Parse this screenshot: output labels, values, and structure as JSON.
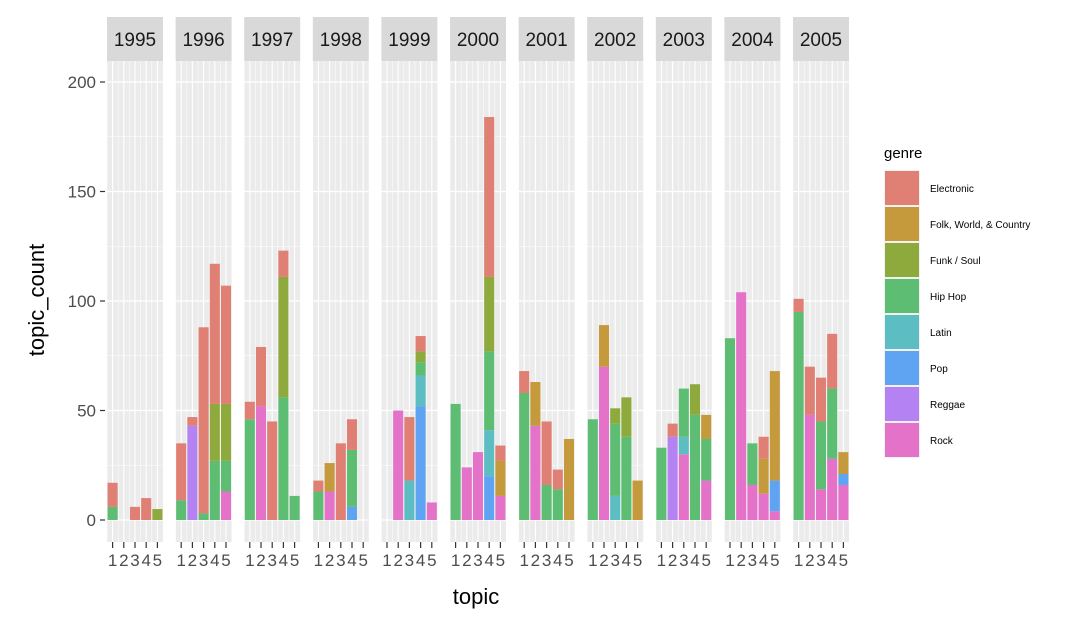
{
  "chart_data": {
    "type": "bar",
    "stacked": true,
    "facet_by": "year",
    "xlabel": "topic",
    "ylabel": "topic_count",
    "ylim": [
      0,
      210
    ],
    "yticks": [
      0,
      50,
      100,
      150,
      200
    ],
    "x_categories": [
      "1",
      "2",
      "3",
      "4",
      "5"
    ],
    "legend": {
      "title": "genre",
      "placement": "right"
    },
    "genres": [
      {
        "name": "Electronic",
        "color": "#E07F73"
      },
      {
        "name": "Folk, World, & Country",
        "color": "#C49A3C"
      },
      {
        "name": "Funk / Soul",
        "color": "#8FAA3C"
      },
      {
        "name": "Hip Hop",
        "color": "#5DBD72"
      },
      {
        "name": "Latin",
        "color": "#5CBDC3"
      },
      {
        "name": "Pop",
        "color": "#5EA4F2"
      },
      {
        "name": "Reggae",
        "color": "#B482F2"
      },
      {
        "name": "Rock",
        "color": "#E572C9"
      }
    ],
    "facets": [
      {
        "year": "1995",
        "bars": [
          {
            "topic": "1",
            "stack": {
              "Hip Hop": 6,
              "Electronic": 11
            }
          },
          {
            "topic": "2",
            "stack": {}
          },
          {
            "topic": "3",
            "stack": {
              "Electronic": 6
            }
          },
          {
            "topic": "4",
            "stack": {
              "Electronic": 10
            }
          },
          {
            "topic": "5",
            "stack": {
              "Funk / Soul": 5
            }
          }
        ]
      },
      {
        "year": "1996",
        "bars": [
          {
            "topic": "1",
            "stack": {
              "Hip Hop": 9,
              "Electronic": 26
            }
          },
          {
            "topic": "2",
            "stack": {
              "Reggae": 43,
              "Electronic": 4
            }
          },
          {
            "topic": "3",
            "stack": {
              "Hip Hop": 3,
              "Electronic": 85
            }
          },
          {
            "topic": "4",
            "stack": {
              "Hip Hop": 27,
              "Funk / Soul": 26,
              "Electronic": 64
            }
          },
          {
            "topic": "5",
            "stack": {
              "Rock": 13,
              "Hip Hop": 14,
              "Funk / Soul": 26,
              "Electronic": 54
            }
          }
        ]
      },
      {
        "year": "1997",
        "bars": [
          {
            "topic": "1",
            "stack": {
              "Hip Hop": 46,
              "Electronic": 8
            }
          },
          {
            "topic": "2",
            "stack": {
              "Rock": 52,
              "Electronic": 27
            }
          },
          {
            "topic": "3",
            "stack": {
              "Electronic": 45
            }
          },
          {
            "topic": "4",
            "stack": {
              "Hip Hop": 56,
              "Funk / Soul": 55,
              "Electronic": 12
            }
          },
          {
            "topic": "5",
            "stack": {
              "Hip Hop": 11
            }
          }
        ]
      },
      {
        "year": "1998",
        "bars": [
          {
            "topic": "1",
            "stack": {
              "Hip Hop": 13,
              "Electronic": 5
            }
          },
          {
            "topic": "2",
            "stack": {
              "Rock": 13,
              "Folk, World, & Country": 13
            }
          },
          {
            "topic": "3",
            "stack": {
              "Electronic": 35
            }
          },
          {
            "topic": "4",
            "stack": {
              "Pop": 6,
              "Hip Hop": 26,
              "Electronic": 14
            }
          },
          {
            "topic": "5",
            "stack": {}
          }
        ]
      },
      {
        "year": "1999",
        "bars": [
          {
            "topic": "1",
            "stack": {}
          },
          {
            "topic": "2",
            "stack": {
              "Rock": 50
            }
          },
          {
            "topic": "3",
            "stack": {
              "Latin": 18,
              "Electronic": 29
            }
          },
          {
            "topic": "4",
            "stack": {
              "Pop": 52,
              "Latin": 14,
              "Hip Hop": 6,
              "Funk / Soul": 5,
              "Electronic": 7
            }
          },
          {
            "topic": "5",
            "stack": {
              "Rock": 8
            }
          }
        ]
      },
      {
        "year": "2000",
        "bars": [
          {
            "topic": "1",
            "stack": {
              "Hip Hop": 53
            }
          },
          {
            "topic": "2",
            "stack": {
              "Rock": 24
            }
          },
          {
            "topic": "3",
            "stack": {
              "Rock": 31
            }
          },
          {
            "topic": "4",
            "stack": {
              "Pop": 20,
              "Latin": 21,
              "Hip Hop": 36,
              "Funk / Soul": 34,
              "Electronic": 73
            }
          },
          {
            "topic": "5",
            "stack": {
              "Rock": 11,
              "Folk, World, & Country": 16,
              "Electronic": 7
            }
          }
        ]
      },
      {
        "year": "2001",
        "bars": [
          {
            "topic": "1",
            "stack": {
              "Hip Hop": 58,
              "Electronic": 10
            }
          },
          {
            "topic": "2",
            "stack": {
              "Rock": 43,
              "Folk, World, & Country": 20
            }
          },
          {
            "topic": "3",
            "stack": {
              "Hip Hop": 16,
              "Electronic": 29
            }
          },
          {
            "topic": "4",
            "stack": {
              "Hip Hop": 14,
              "Electronic": 9
            }
          },
          {
            "topic": "5",
            "stack": {
              "Folk, World, & Country": 37
            }
          }
        ]
      },
      {
        "year": "2002",
        "bars": [
          {
            "topic": "1",
            "stack": {
              "Hip Hop": 46
            }
          },
          {
            "topic": "2",
            "stack": {
              "Rock": 70,
              "Folk, World, & Country": 19
            }
          },
          {
            "topic": "3",
            "stack": {
              "Latin": 11,
              "Hip Hop": 33,
              "Funk / Soul": 7
            }
          },
          {
            "topic": "4",
            "stack": {
              "Hip Hop": 38,
              "Funk / Soul": 18
            }
          },
          {
            "topic": "5",
            "stack": {
              "Folk, World, & Country": 18
            }
          }
        ]
      },
      {
        "year": "2003",
        "bars": [
          {
            "topic": "1",
            "stack": {
              "Hip Hop": 33
            }
          },
          {
            "topic": "2",
            "stack": {
              "Reggae": 38,
              "Electronic": 6
            }
          },
          {
            "topic": "3",
            "stack": {
              "Rock": 30,
              "Latin": 8,
              "Hip Hop": 22
            }
          },
          {
            "topic": "4",
            "stack": {
              "Hip Hop": 48,
              "Funk / Soul": 14
            }
          },
          {
            "topic": "5",
            "stack": {
              "Rock": 18,
              "Hip Hop": 19,
              "Folk, World, & Country": 11
            }
          }
        ]
      },
      {
        "year": "2004",
        "bars": [
          {
            "topic": "1",
            "stack": {
              "Hip Hop": 83
            }
          },
          {
            "topic": "2",
            "stack": {
              "Rock": 104
            }
          },
          {
            "topic": "3",
            "stack": {
              "Rock": 16,
              "Hip Hop": 19
            }
          },
          {
            "topic": "4",
            "stack": {
              "Rock": 12,
              "Folk, World, & Country": 16,
              "Electronic": 10
            }
          },
          {
            "topic": "5",
            "stack": {
              "Pop": 14,
              "Rock": 4,
              "Folk, World, & Country": 50
            }
          }
        ]
      },
      {
        "year": "2005",
        "bars": [
          {
            "topic": "1",
            "stack": {
              "Hip Hop": 95,
              "Electronic": 6
            }
          },
          {
            "topic": "2",
            "stack": {
              "Rock": 48,
              "Electronic": 22
            }
          },
          {
            "topic": "3",
            "stack": {
              "Rock": 14,
              "Hip Hop": 31,
              "Electronic": 20
            }
          },
          {
            "topic": "4",
            "stack": {
              "Rock": 28,
              "Hip Hop": 32,
              "Electronic": 25
            }
          },
          {
            "topic": "5",
            "stack": {
              "Rock": 16,
              "Pop": 5,
              "Folk, World, & Country": 10
            }
          }
        ]
      }
    ]
  }
}
